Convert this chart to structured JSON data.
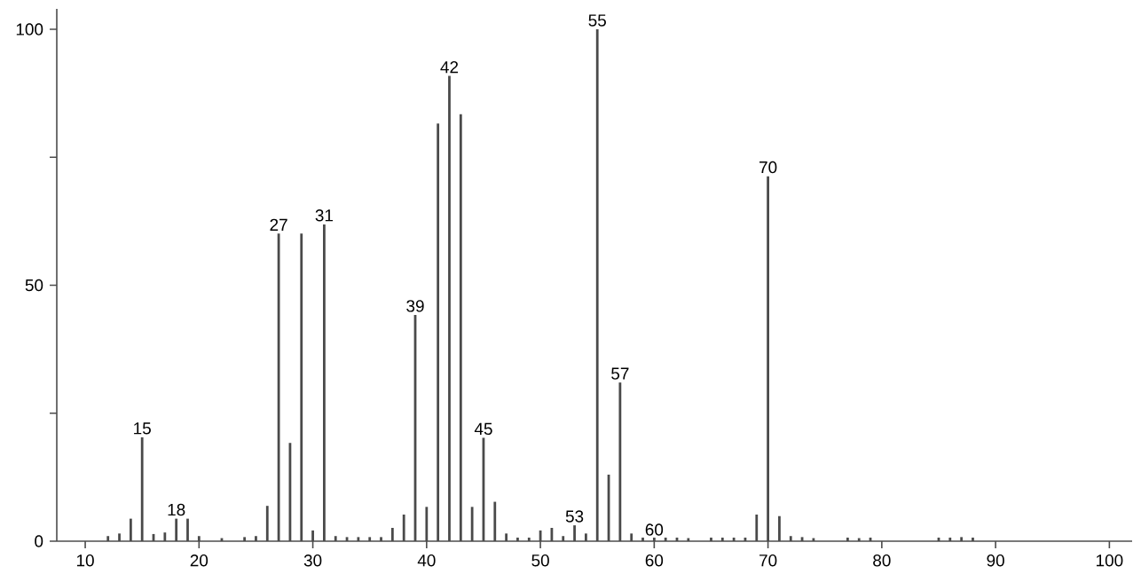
{
  "chart_data": {
    "type": "bar",
    "color": "#4a4a4a",
    "x": [
      12,
      13,
      14,
      15,
      16,
      17,
      18,
      19,
      20,
      22,
      24,
      25,
      26,
      27,
      28,
      29,
      30,
      31,
      32,
      33,
      34,
      35,
      36,
      37,
      38,
      39,
      40,
      41,
      42,
      43,
      44,
      45,
      46,
      47,
      48,
      49,
      50,
      51,
      52,
      53,
      54,
      55,
      56,
      57,
      58,
      59,
      60,
      61,
      62,
      63,
      65,
      66,
      67,
      68,
      69,
      70,
      71,
      72,
      73,
      74,
      77,
      78,
      79,
      85,
      86,
      87,
      88
    ],
    "values": [
      1,
      1.5,
      4.4,
      20.3,
      1.4,
      1.7,
      4.4,
      4.4,
      1,
      0.6,
      0.8,
      1,
      6.9,
      60.1,
      19.2,
      60.1,
      2.1,
      61.9,
      1,
      0.8,
      0.8,
      0.8,
      0.8,
      2.6,
      5.2,
      44.2,
      6.7,
      81.6,
      90.9,
      83.4,
      6.7,
      20.2,
      7.7,
      1.5,
      0.7,
      0.7,
      2.1,
      2.6,
      1,
      3.1,
      1.5,
      100,
      13,
      31,
      1.5,
      0.7,
      0.7,
      0.7,
      0.7,
      0.6,
      0.7,
      0.7,
      0.7,
      0.7,
      5.2,
      71.3,
      4.9,
      1,
      0.8,
      0.6,
      0.7,
      0.6,
      0.7,
      0.7,
      0.7,
      0.8,
      0.7
    ],
    "xlim": [
      7.5,
      102
    ],
    "ylim": [
      0,
      104
    ],
    "xticks": [
      10,
      20,
      30,
      40,
      50,
      60,
      70,
      80,
      90,
      100
    ],
    "yticks": [
      0,
      {
        "value": 25,
        "label": null
      },
      50,
      {
        "value": 75,
        "label": null
      },
      100
    ],
    "annotations": [
      {
        "text": "15",
        "x": 15,
        "y": 20.3
      },
      {
        "text": "18",
        "x": 18,
        "y": 4.4
      },
      {
        "text": "27",
        "x": 27,
        "y": 60.1
      },
      {
        "text": "31",
        "x": 31,
        "y": 61.9
      },
      {
        "text": "39",
        "x": 39,
        "y": 44.2
      },
      {
        "text": "42",
        "x": 42,
        "y": 90.9
      },
      {
        "text": "45",
        "x": 45,
        "y": 20.2
      },
      {
        "text": "53",
        "x": 53,
        "y": 3.1
      },
      {
        "text": "55",
        "x": 55,
        "y": 100
      },
      {
        "text": "57",
        "x": 57,
        "y": 31
      },
      {
        "text": "60",
        "x": 60,
        "y": 0.5
      },
      {
        "text": "70",
        "x": 70,
        "y": 71.3
      }
    ]
  }
}
